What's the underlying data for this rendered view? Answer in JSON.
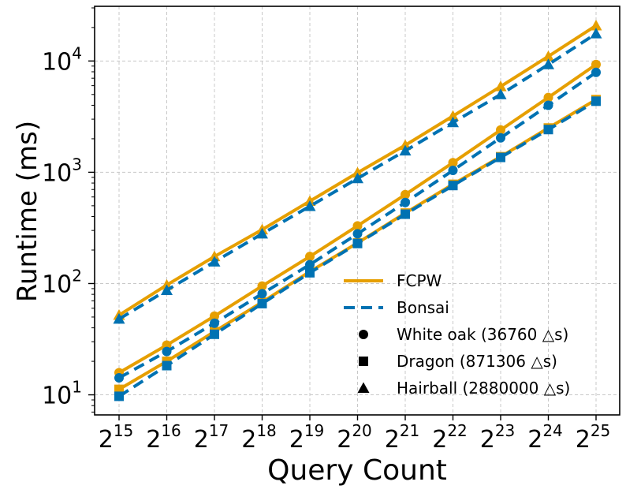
{
  "chart_data": {
    "type": "line",
    "title": "",
    "xlabel": "Query Count",
    "ylabel": "Runtime (ms)",
    "yscale": "log",
    "ylim": [
      6.6,
      31000
    ],
    "grid": true,
    "x_exponents": [
      15,
      16,
      17,
      18,
      19,
      20,
      21,
      22,
      23,
      24,
      25
    ],
    "x_tick_base": "2",
    "y_ticks": [
      {
        "value": 10,
        "base": "10",
        "exp": "1"
      },
      {
        "value": 100,
        "base": "10",
        "exp": "2"
      },
      {
        "value": 1000,
        "base": "10",
        "exp": "3"
      },
      {
        "value": 10000,
        "base": "10",
        "exp": "4"
      }
    ],
    "colors": {
      "FCPW": "#E69F00",
      "Bonsai": "#0072B2"
    },
    "series": [
      {
        "name": "FCPW",
        "dataset": "White oak",
        "marker": "circle",
        "values": [
          15.8,
          28,
          51,
          95,
          175,
          330,
          630,
          1220,
          2400,
          4700,
          9300
        ]
      },
      {
        "name": "Bonsai",
        "dataset": "White oak",
        "marker": "circle",
        "values": [
          14.2,
          24.5,
          44,
          81,
          148,
          280,
          535,
          1040,
          2040,
          4000,
          7900
        ]
      },
      {
        "name": "FCPW",
        "dataset": "Dragon",
        "marker": "square",
        "values": [
          11.2,
          20,
          37,
          68,
          128,
          232,
          430,
          780,
          1380,
          2500,
          4500
        ]
      },
      {
        "name": "Bonsai",
        "dataset": "Dragon",
        "marker": "square",
        "values": [
          9.7,
          18.3,
          35,
          66,
          125,
          229,
          420,
          760,
          1360,
          2420,
          4350
        ]
      },
      {
        "name": "FCPW",
        "dataset": "Hairball",
        "marker": "triangle",
        "values": [
          52,
          97,
          175,
          305,
          550,
          990,
          1750,
          3200,
          5900,
          11000,
          20800
        ]
      },
      {
        "name": "Bonsai",
        "dataset": "Hairball",
        "marker": "triangle",
        "values": [
          48,
          87,
          157,
          280,
          495,
          880,
          1560,
          2800,
          5000,
          9300,
          17600
        ]
      }
    ],
    "legend": {
      "location": "lower-right",
      "entries": [
        {
          "label": "FCPW",
          "kind": "line-solid",
          "color_key": "FCPW"
        },
        {
          "label": "Bonsai",
          "kind": "line-dashed",
          "color_key": "Bonsai"
        },
        {
          "label": "White oak (36760 △s)",
          "kind": "marker",
          "marker": "circle"
        },
        {
          "label": "Dragon (871306 △s)",
          "kind": "marker",
          "marker": "square"
        },
        {
          "label": "Hairball (2880000 △s)",
          "kind": "marker",
          "marker": "triangle"
        }
      ]
    }
  }
}
